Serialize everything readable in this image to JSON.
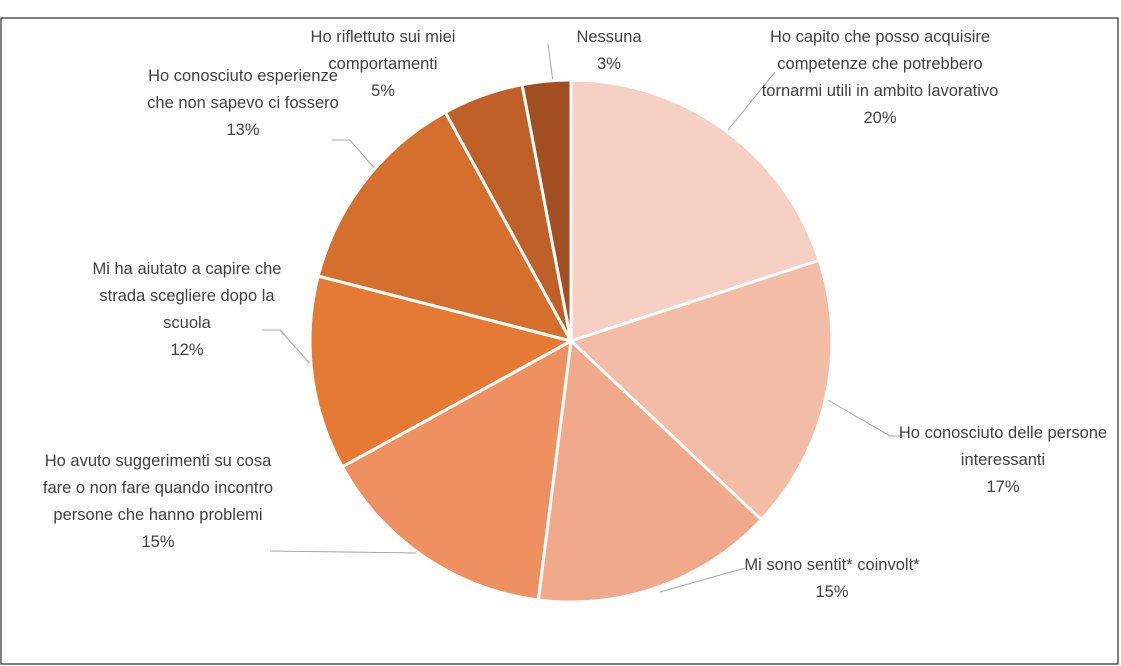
{
  "chart_data": {
    "type": "pie",
    "categories": [
      "Ho capito che posso acquisire competenze che potrebbero tornarmi utili in ambito lavorativo",
      "Ho conosciuto delle persone interessanti",
      "Mi sono sentit* coinvolt*",
      "Ho avuto suggerimenti su cosa fare o non fare quando incontro persone che hanno problemi",
      "Mi ha aiutato a capire che strada scegliere dopo la scuola",
      "Ho conosciuto esperienze che non sapevo ci fossero",
      "Ho riflettuto sui miei comportamenti",
      "Nessuna"
    ],
    "values": [
      20,
      17,
      15,
      15,
      12,
      13,
      5,
      3
    ],
    "value_labels": [
      "20%",
      "17%",
      "15%",
      "15%",
      "12%",
      "13%",
      "5%",
      "3%"
    ],
    "colors": [
      "#f6d0c2",
      "#f3bca6",
      "#f0a98a",
      "#ee9060",
      "#e47a33",
      "#d46f2e",
      "#bf6028",
      "#a04e22"
    ]
  }
}
